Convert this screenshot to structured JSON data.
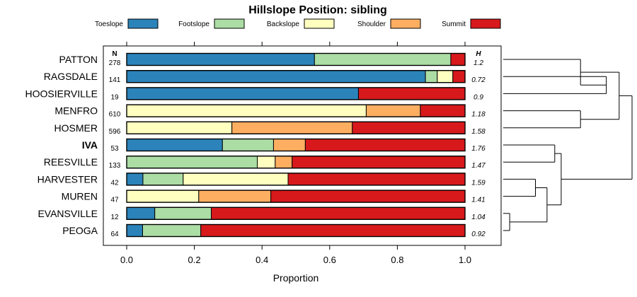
{
  "chart_data": {
    "type": "bar",
    "orientation": "horizontal",
    "stacked": true,
    "title": "Hillslope Position: sibling",
    "xlabel": "Proportion",
    "xlim": [
      0,
      1
    ],
    "xticks": [
      0.0,
      0.2,
      0.4,
      0.6,
      0.8,
      1.0
    ],
    "xtick_labels": [
      "0.0",
      "0.2",
      "0.4",
      "0.6",
      "0.8",
      "1.0"
    ],
    "n_header": "N",
    "h_header": "H",
    "legend_position": "top",
    "series": [
      {
        "name": "Toeslope",
        "color": "#2b83ba"
      },
      {
        "name": "Footslope",
        "color": "#abdda4"
      },
      {
        "name": "Backslope",
        "color": "#ffffbf"
      },
      {
        "name": "Shoulder",
        "color": "#fdae61"
      },
      {
        "name": "Summit",
        "color": "#d7191c"
      }
    ],
    "categories": [
      {
        "name": "PATTON",
        "n": "278",
        "h": "1.2",
        "bold": false,
        "values": [
          0.555,
          0.403,
          0.0,
          0.0,
          0.042
        ]
      },
      {
        "name": "RAGSDALE",
        "n": "141",
        "h": "0.72",
        "bold": false,
        "values": [
          0.883,
          0.035,
          0.046,
          0.0,
          0.036
        ]
      },
      {
        "name": "HOOSIERVILLE",
        "n": "19",
        "h": "0.9",
        "bold": false,
        "values": [
          0.685,
          0.0,
          0.0,
          0.0,
          0.315
        ]
      },
      {
        "name": "MENFRO",
        "n": "610",
        "h": "1.18",
        "bold": false,
        "values": [
          0.0,
          0.0,
          0.708,
          0.16,
          0.132
        ]
      },
      {
        "name": "HOSMER",
        "n": "596",
        "h": "1.58",
        "bold": false,
        "values": [
          0.0,
          0.0,
          0.311,
          0.356,
          0.333
        ]
      },
      {
        "name": "IVA",
        "n": "53",
        "h": "1.76",
        "bold": true,
        "values": [
          0.283,
          0.151,
          0.0,
          0.094,
          0.472
        ]
      },
      {
        "name": "REESVILLE",
        "n": "133",
        "h": "1.47",
        "bold": false,
        "values": [
          0.0,
          0.386,
          0.053,
          0.05,
          0.511
        ]
      },
      {
        "name": "HARVESTER",
        "n": "42",
        "h": "1.59",
        "bold": false,
        "values": [
          0.048,
          0.119,
          0.31,
          0.0,
          0.523
        ]
      },
      {
        "name": "MUREN",
        "n": "47",
        "h": "1.41",
        "bold": false,
        "values": [
          0.0,
          0.0,
          0.213,
          0.213,
          0.574
        ]
      },
      {
        "name": "EVANSVILLE",
        "n": "12",
        "h": "1.04",
        "bold": false,
        "values": [
          0.083,
          0.167,
          0.0,
          0.0,
          0.75
        ]
      },
      {
        "name": "PEOGA",
        "n": "64",
        "h": "0.92",
        "bold": false,
        "values": [
          0.047,
          0.172,
          0.0,
          0.0,
          0.781
        ]
      }
    ],
    "dendrogram": {
      "clusters": [
        {
          "name": "c_pr",
          "children": [
            "RAGSDALE",
            "HOOSIERVILLE"
          ],
          "height": 0.2
        },
        {
          "name": "c_top",
          "children": [
            "PATTON",
            "c_pr"
          ],
          "height": 0.4
        },
        {
          "name": "c_mh",
          "children": [
            "MENFRO",
            "HOSMER"
          ],
          "height": 0.4
        },
        {
          "name": "c_upper",
          "children": [
            "c_top",
            "c_mh"
          ],
          "height": 0.1
        },
        {
          "name": "c_ir",
          "children": [
            "IVA",
            "REESVILLE"
          ],
          "height": 0.6
        },
        {
          "name": "c_hm",
          "children": [
            "HARVESTER",
            "MUREN"
          ],
          "height": 0.75
        },
        {
          "name": "c_ep",
          "children": [
            "EVANSVILLE",
            "PEOGA"
          ],
          "height": 0.95
        },
        {
          "name": "c_hmep",
          "children": [
            "c_hm",
            "c_ep"
          ],
          "height": 0.66
        },
        {
          "name": "c_lower",
          "children": [
            "c_ir",
            "c_hmep"
          ],
          "height": 0.55
        },
        {
          "name": "root",
          "children": [
            "c_upper",
            "c_lower"
          ],
          "height": 0.0
        }
      ]
    }
  }
}
